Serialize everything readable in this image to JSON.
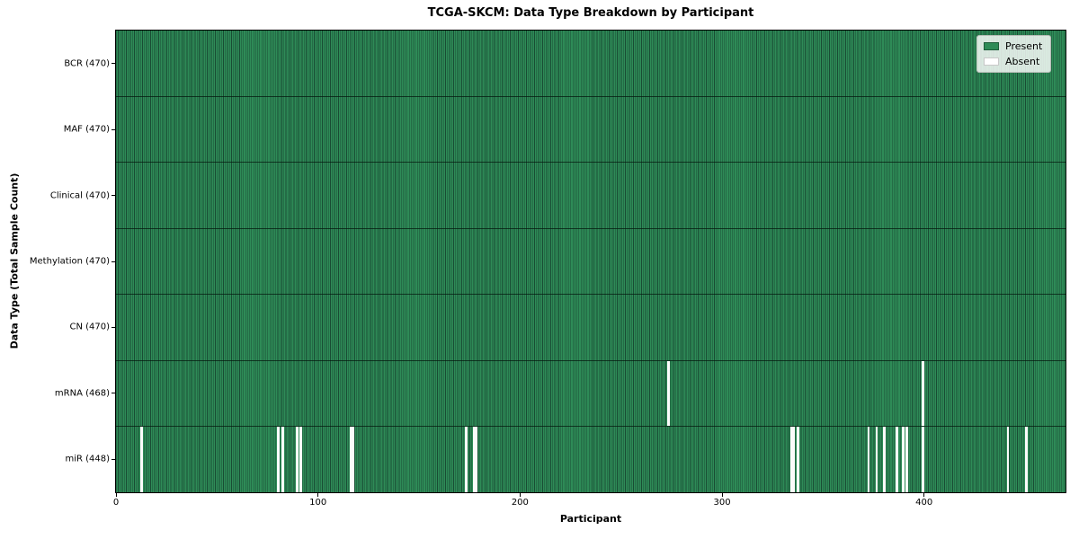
{
  "figure": {
    "title": "TCGA-SKCM: Data Type Breakdown by Participant"
  },
  "chart_data": {
    "type": "heatmap",
    "title": "TCGA-SKCM: Data Type Breakdown by Participant",
    "xlabel": "Participant",
    "ylabel": "Data Type (Total Sample Count)",
    "n_participants": 470,
    "x_ticks": [
      0,
      100,
      200,
      300,
      400
    ],
    "xlim": [
      0,
      470
    ],
    "grid": false,
    "legend_position": "upper-right",
    "legend": [
      {
        "label": "Present",
        "color": "#2e8b57"
      },
      {
        "label": "Absent",
        "color": "#ffffff"
      }
    ],
    "colors": {
      "present": "#2e8b57",
      "absent": "#fbfbfb",
      "cell_edge": "rgba(0,0,10,0.45)",
      "row_separator": "rgba(5,25,15,0.75)"
    },
    "rows": [
      {
        "name": "BCR",
        "total": 470,
        "label": "BCR (470)",
        "absent_participants": []
      },
      {
        "name": "MAF",
        "total": 470,
        "label": "MAF (470)",
        "absent_participants": []
      },
      {
        "name": "Clinical",
        "total": 470,
        "label": "Clinical (470)",
        "absent_participants": []
      },
      {
        "name": "Methylation",
        "total": 470,
        "label": "Methylation (470)",
        "absent_participants": []
      },
      {
        "name": "CN",
        "total": 470,
        "label": "CN (470)",
        "absent_participants": []
      },
      {
        "name": "mRNA",
        "total": 468,
        "label": "mRNA (468)",
        "absent_participants": [
          273,
          399
        ]
      },
      {
        "name": "miR",
        "total": 448,
        "label": "miR (448)",
        "absent_participants": [
          12,
          80,
          82,
          89,
          91,
          116,
          117,
          173,
          177,
          178,
          334,
          335,
          337,
          372,
          376,
          380,
          386,
          389,
          391,
          399,
          441,
          450
        ]
      }
    ]
  }
}
